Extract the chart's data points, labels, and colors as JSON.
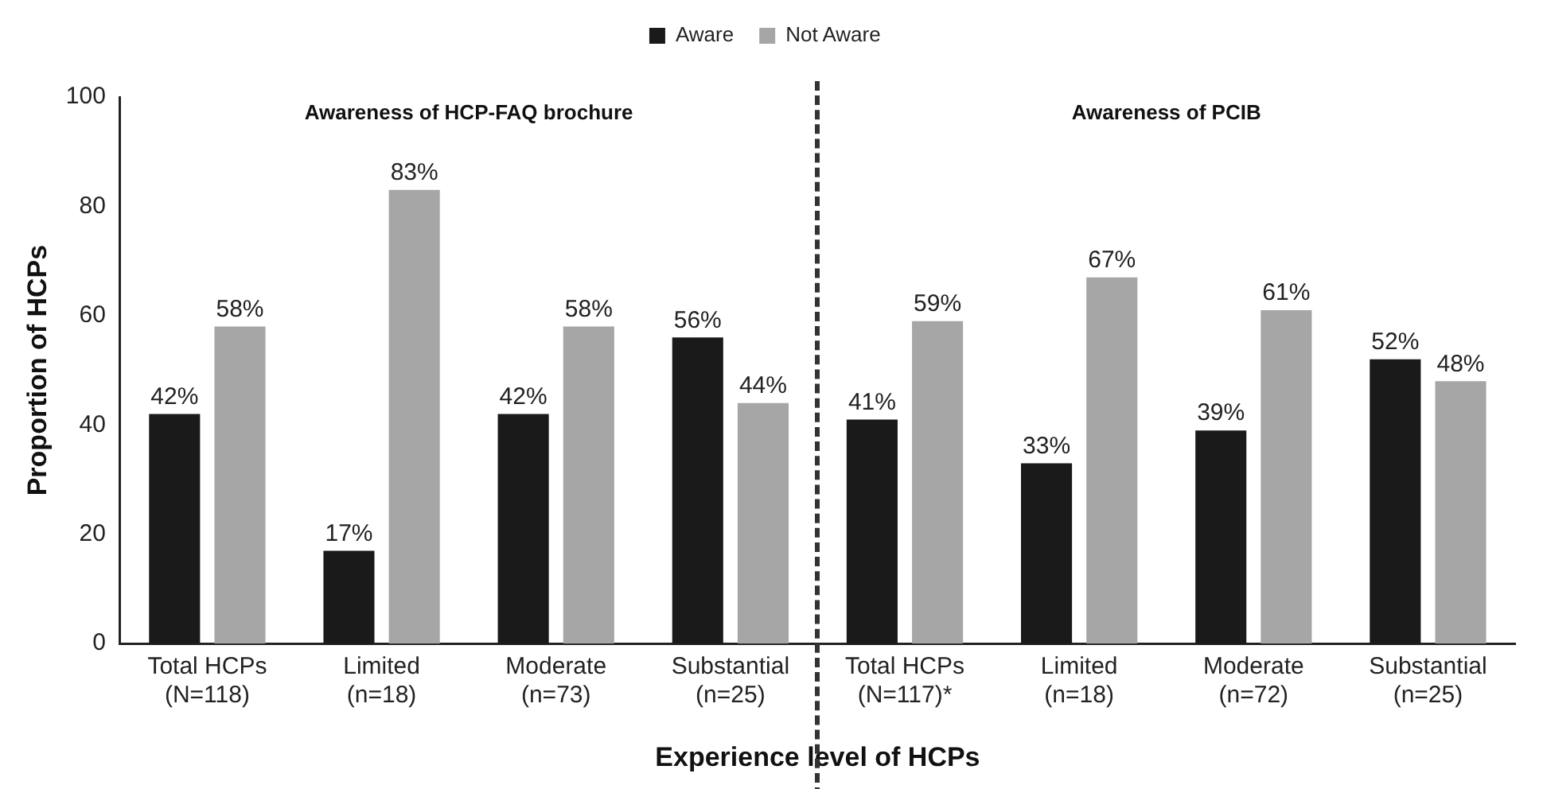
{
  "chart_data": {
    "type": "bar",
    "xlabel": "Experience level of HCPs",
    "ylabel": "Proportion of HCPs",
    "categories": [
      "Total HCPs\n(N=118)",
      "Limited\n(n=18)",
      "Moderate\n(n=73)",
      "Substantial\n(n=25)",
      "Total HCPs\n(N=117)*",
      "Limited\n(n=18)",
      "Moderate\n(n=72)",
      "Substantial\n(n=25)"
    ],
    "series": [
      {
        "name": "Aware",
        "color": "#1a1a1a",
        "values": [
          42,
          17,
          42,
          56,
          41,
          33,
          39,
          52
        ],
        "value_labels": [
          "42%",
          "17%",
          "42%",
          "56%",
          "41%",
          "33%",
          "39%",
          "52%"
        ]
      },
      {
        "name": "Not Aware",
        "color": "#a6a6a6",
        "values": [
          58,
          83,
          58,
          44,
          59,
          67,
          61,
          48
        ],
        "value_labels": [
          "58%",
          "83%",
          "58%",
          "44%",
          "59%",
          "67%",
          "61%",
          "48%"
        ]
      }
    ],
    "ylim": [
      0,
      100
    ],
    "yticks": [
      0,
      20,
      40,
      60,
      80,
      100
    ],
    "grid": false,
    "legend": "top",
    "annotations": [
      "Awareness of HCP-FAQ brochure",
      "Awareness of PCIB"
    ]
  }
}
